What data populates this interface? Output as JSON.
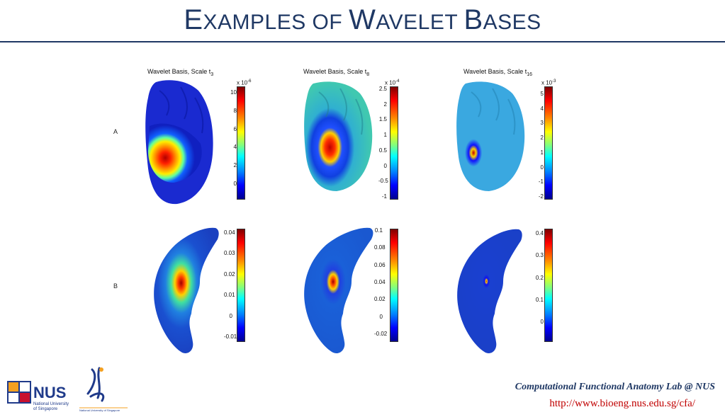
{
  "slide": {
    "title_first_letter": "E",
    "title_part1": "XAMPLES OF ",
    "title_second_letter": "W",
    "title_part2": "AVELET ",
    "title_third_letter": "B",
    "title_part3": "ASES",
    "row_labels": [
      "A",
      "B"
    ]
  },
  "panels": {
    "a1": {
      "title": "Wavelet Basis, Scale t",
      "sub": "3",
      "exponent": "x 10",
      "exp_power": "-6",
      "ticks": [
        "10",
        "8",
        "6",
        "4",
        "2",
        "0"
      ]
    },
    "a2": {
      "title": "Wavelet Basis, Scale t",
      "sub": "8",
      "exponent": "x 10",
      "exp_power": "-4",
      "ticks": [
        "2.5",
        "2",
        "1.5",
        "1",
        "0.5",
        "0",
        "-0.5",
        "-1"
      ]
    },
    "a3": {
      "title": "Wavelet Basis, Scale t",
      "sub": "16",
      "exponent": "x 10",
      "exp_power": "-3",
      "ticks": [
        "5",
        "4",
        "3",
        "2",
        "1",
        "0",
        "-1",
        "-2"
      ]
    },
    "b1": {
      "ticks": [
        "0.04",
        "0.03",
        "0.02",
        "0.01",
        "0",
        "-0.01"
      ]
    },
    "b2": {
      "ticks": [
        "0.1",
        "0.08",
        "0.06",
        "0.04",
        "0.02",
        "0",
        "-0.02"
      ]
    },
    "b3": {
      "ticks": [
        "0.4",
        "0.3",
        "0.2",
        "0.1",
        "0"
      ]
    }
  },
  "logos": {
    "nus_text": "NUS",
    "nus_sub1": "National University",
    "nus_sub2": "of Singapore",
    "ngs_sub": "National University of Singapore"
  },
  "footer": {
    "lab": "Computational Functional Anatomy Lab @ NUS",
    "url": "http://www.bioeng.nus.edu.sg/cfa/"
  },
  "colors": {
    "title": "#1f3864",
    "rule": "#1f3864",
    "url": "#c00000"
  }
}
